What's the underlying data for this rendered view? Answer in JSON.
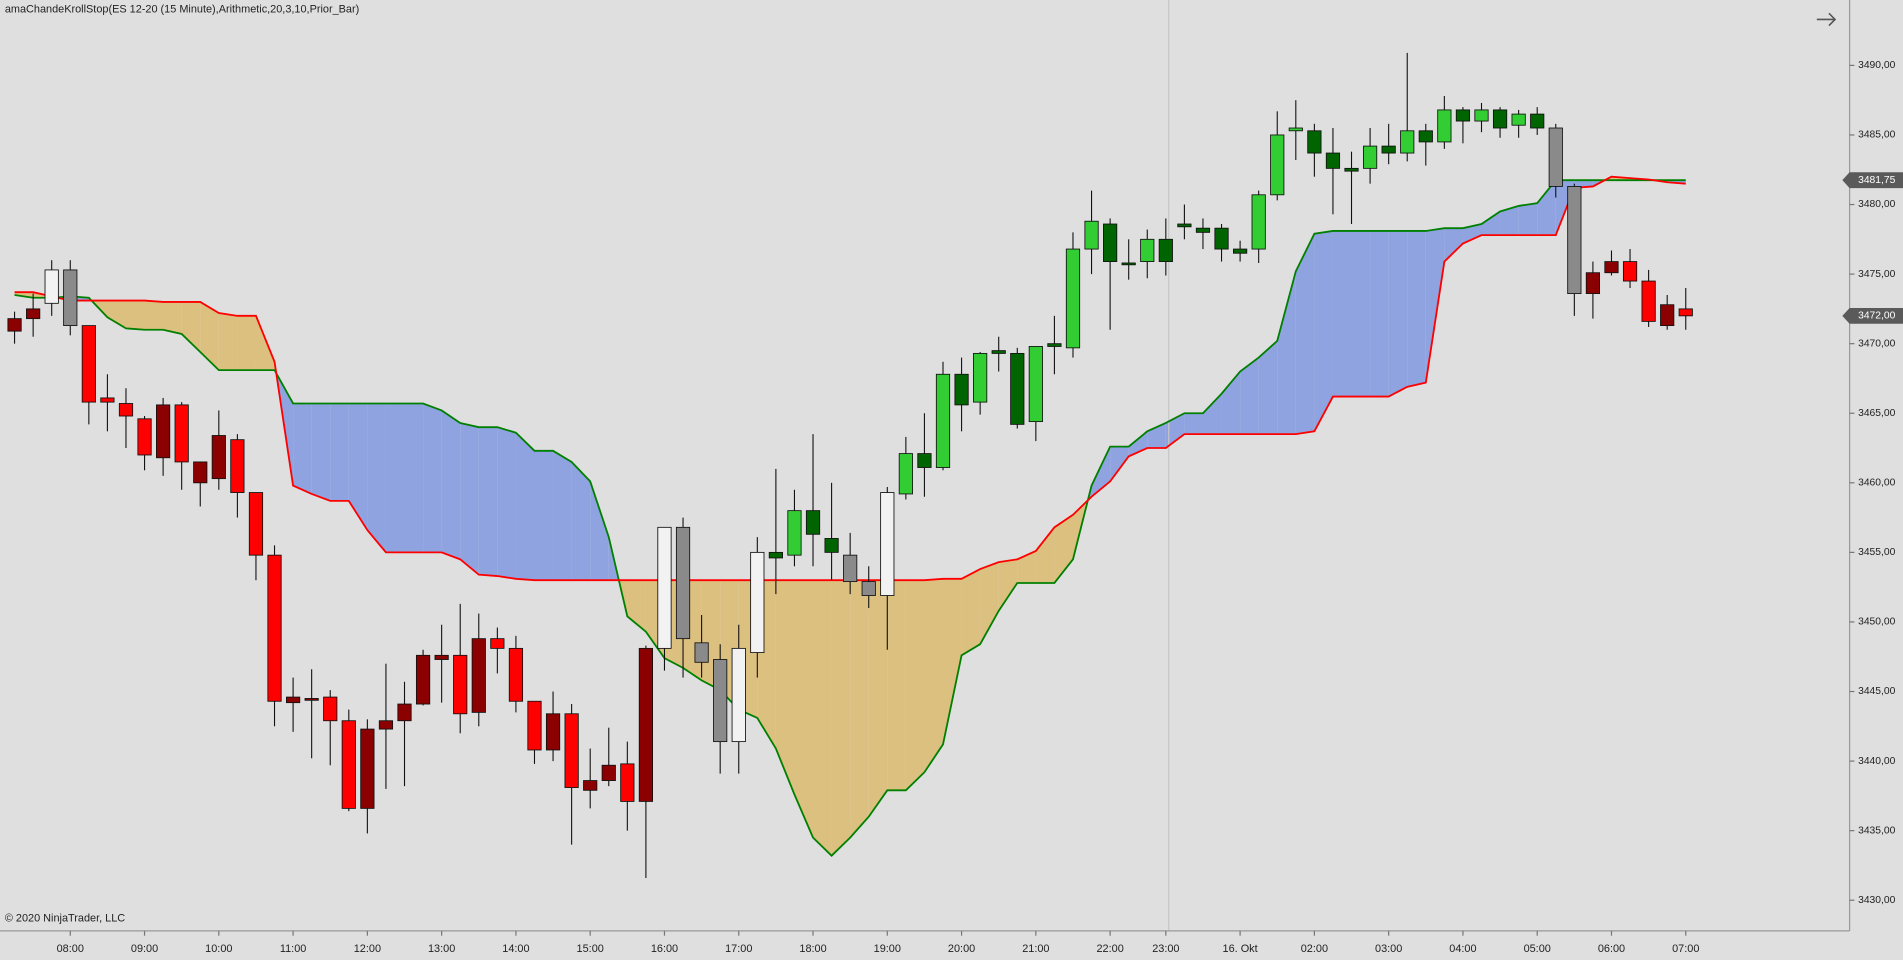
{
  "chart_data": {
    "type": "candlestick",
    "title": "amaChandeKrollStop(ES 12-20 (15 Minute),Arithmetic,20,3,10,Prior_Bar)",
    "copyright": "© 2020 NinjaTrader, LLC",
    "categories": [
      null,
      null,
      null,
      "08:00",
      null,
      null,
      null,
      "09:00",
      null,
      null,
      null,
      "10:00",
      null,
      null,
      null,
      "11:00",
      null,
      null,
      null,
      "12:00",
      null,
      null,
      null,
      "13:00",
      null,
      null,
      null,
      "14:00",
      null,
      null,
      null,
      "15:00",
      null,
      null,
      null,
      "16:00",
      null,
      null,
      null,
      "17:00",
      null,
      null,
      null,
      "18:00",
      null,
      null,
      null,
      "19:00",
      null,
      null,
      null,
      "20:00",
      null,
      null,
      null,
      "21:00",
      null,
      null,
      null,
      "22:00",
      null,
      null,
      "23:00",
      null,
      null,
      null,
      "16. Okt",
      null,
      null,
      null,
      "02:00",
      null,
      null,
      null,
      "03:00",
      null,
      null,
      null,
      "04:00",
      null,
      null,
      null,
      "05:00",
      null,
      null,
      null,
      "06:00",
      null,
      null,
      null,
      "07:00"
    ],
    "open": [
      3471.8,
      3472.5,
      3472.9,
      3475.3,
      3471.3,
      3466.1,
      3465.7,
      3464.6,
      3465.6,
      3465.6,
      3461.5,
      3460.3,
      3463.1,
      3459.3,
      3454.8,
      3444.2,
      3444.5,
      3444.6,
      3442.9,
      3436.6,
      3442.3,
      3442.9,
      3444.1,
      3447.3,
      3447.6,
      3443.5,
      3448.8,
      3448.1,
      3444.3,
      3440.8,
      3443.4,
      3437.9,
      3438.6,
      3439.8,
      3437.1,
      3448.1,
      3456.8,
      3448.5,
      3447.3,
      3441.4,
      3447.8,
      3454.6,
      3454.8,
      3458.0,
      3456.0,
      3454.8,
      3452.9,
      3451.9,
      3459.2,
      3462.1,
      3461.1,
      3467.8,
      3465.8,
      3469.5,
      3469.3,
      3464.4,
      3470.0,
      3469.7,
      3476.8,
      3478.6,
      3475.8,
      3475.9,
      3477.5,
      3478.6,
      3478.3,
      3478.3,
      3476.8,
      3476.8,
      3480.7,
      3485.3,
      3485.3,
      3483.7,
      3482.6,
      3482.6,
      3484.2,
      3483.7,
      3485.3,
      3484.5,
      3486.8,
      3486.0,
      3486.8,
      3485.7,
      3486.5,
      3485.5,
      3481.3,
      3473.6,
      3475.1,
      3475.9,
      3474.5,
      3472.8,
      3472.5
    ],
    "high": [
      3472.3,
      3473.6,
      3476.0,
      3476.0,
      3471.3,
      3467.8,
      3466.8,
      3464.8,
      3466.1,
      3465.8,
      3461.5,
      3465.2,
      3463.5,
      3459.3,
      3455.5,
      3446.0,
      3446.6,
      3445.1,
      3443.7,
      3443.0,
      3447.0,
      3445.7,
      3448.0,
      3449.8,
      3451.3,
      3450.6,
      3449.6,
      3449.0,
      3444.3,
      3445.0,
      3444.1,
      3440.9,
      3442.4,
      3441.4,
      3448.3,
      3456.8,
      3457.5,
      3450.5,
      3448.4,
      3449.8,
      3456.1,
      3461.0,
      3459.5,
      3463.5,
      3460.0,
      3456.4,
      3454.0,
      3459.7,
      3463.3,
      3465.0,
      3468.7,
      3469.0,
      3469.4,
      3470.5,
      3469.7,
      3469.8,
      3472.0,
      3478.0,
      3481.0,
      3479.0,
      3477.5,
      3478.2,
      3479.0,
      3480.0,
      3479.0,
      3478.6,
      3477.4,
      3481.0,
      3486.7,
      3487.5,
      3485.8,
      3485.5,
      3483.8,
      3485.5,
      3485.8,
      3490.9,
      3485.8,
      3487.8,
      3487.0,
      3487.3,
      3487.0,
      3486.8,
      3487.0,
      3485.8,
      3481.5,
      3475.9,
      3476.7,
      3476.8,
      3475.3,
      3473.5,
      3474.0
    ],
    "low": [
      3470.0,
      3470.5,
      3472.0,
      3470.6,
      3464.2,
      3463.7,
      3462.5,
      3460.9,
      3460.5,
      3459.5,
      3458.3,
      3459.5,
      3457.5,
      3453.0,
      3442.5,
      3442.1,
      3440.2,
      3439.7,
      3436.4,
      3434.8,
      3438.0,
      3438.2,
      3444.0,
      3444.2,
      3442.0,
      3442.5,
      3446.3,
      3443.5,
      3439.8,
      3440.0,
      3434.0,
      3436.6,
      3438.2,
      3435.0,
      3431.6,
      3446.5,
      3446.0,
      3446.0,
      3439.1,
      3439.1,
      3446.0,
      3452.0,
      3454.0,
      3454.0,
      3453.0,
      3452.0,
      3451.0,
      3448.0,
      3458.8,
      3459.0,
      3460.9,
      3463.7,
      3464.9,
      3468.0,
      3463.9,
      3463.0,
      3467.8,
      3469.0,
      3475.0,
      3471.0,
      3474.6,
      3474.7,
      3474.9,
      3477.5,
      3476.8,
      3475.9,
      3475.9,
      3475.8,
      3480.3,
      3483.2,
      3482.0,
      3479.3,
      3478.6,
      3481.5,
      3482.9,
      3483.1,
      3482.8,
      3484.0,
      3484.4,
      3485.2,
      3484.8,
      3484.8,
      3485.0,
      3480.5,
      3472.0,
      3471.8,
      3474.9,
      3474.0,
      3471.2,
      3471.0,
      3471.0
    ],
    "close": [
      3470.9,
      3471.8,
      3475.3,
      3471.3,
      3465.8,
      3465.8,
      3464.8,
      3462.0,
      3461.8,
      3461.5,
      3460.0,
      3463.4,
      3459.3,
      3454.8,
      3444.3,
      3444.6,
      3444.4,
      3442.9,
      3436.6,
      3442.3,
      3442.9,
      3444.1,
      3447.6,
      3447.6,
      3443.4,
      3448.8,
      3448.1,
      3444.3,
      3440.8,
      3443.4,
      3438.1,
      3438.6,
      3439.7,
      3437.1,
      3448.1,
      3456.8,
      3448.8,
      3447.1,
      3441.4,
      3448.1,
      3455.0,
      3455.0,
      3458.0,
      3456.3,
      3455.0,
      3452.9,
      3451.9,
      3459.3,
      3462.1,
      3461.1,
      3467.8,
      3465.6,
      3469.3,
      3469.3,
      3464.2,
      3469.8,
      3469.8,
      3476.8,
      3478.8,
      3475.9,
      3475.7,
      3477.5,
      3475.9,
      3478.4,
      3478.0,
      3476.8,
      3476.5,
      3480.7,
      3485.0,
      3485.5,
      3483.7,
      3482.6,
      3482.4,
      3484.2,
      3483.7,
      3485.3,
      3484.5,
      3486.8,
      3486.0,
      3486.8,
      3485.5,
      3486.5,
      3485.5,
      3481.3,
      3473.6,
      3475.1,
      3475.9,
      3474.5,
      3471.6,
      3471.3,
      3472.0
    ],
    "candle_colors": [
      "#8b0000",
      "#8b0000",
      "#f2f2f2",
      "#8a8a8a",
      "#ff0000",
      "#ff0000",
      "#ff0000",
      "#ff0000",
      "#8b0000",
      "#ff0000",
      "#8b0000",
      "#8b0000",
      "#ff0000",
      "#ff0000",
      "#ff0000",
      "#8b0000",
      "#8b0000",
      "#ff0000",
      "#ff0000",
      "#8b0000",
      "#8b0000",
      "#8b0000",
      "#8b0000",
      "#8b0000",
      "#ff0000",
      "#8b0000",
      "#ff0000",
      "#ff0000",
      "#ff0000",
      "#8b0000",
      "#ff0000",
      "#8b0000",
      "#8b0000",
      "#ff0000",
      "#8b0000",
      "#f2f2f2",
      "#8a8a8a",
      "#8a8a8a",
      "#8a8a8a",
      "#f2f2f2",
      "#f2f2f2",
      "#006400",
      "#32cd32",
      "#006400",
      "#006400",
      "#8a8a8a",
      "#8a8a8a",
      "#f2f2f2",
      "#32cd32",
      "#006400",
      "#32cd32",
      "#006400",
      "#32cd32",
      "#006400",
      "#006400",
      "#32cd32",
      "#006400",
      "#32cd32",
      "#32cd32",
      "#006400",
      "#006400",
      "#32cd32",
      "#006400",
      "#006400",
      "#006400",
      "#006400",
      "#006400",
      "#32cd32",
      "#32cd32",
      "#32cd32",
      "#006400",
      "#006400",
      "#006400",
      "#32cd32",
      "#006400",
      "#32cd32",
      "#006400",
      "#32cd32",
      "#006400",
      "#32cd32",
      "#006400",
      "#32cd32",
      "#006400",
      "#8a8a8a",
      "#8a8a8a",
      "#8b0000",
      "#8b0000",
      "#ff0000",
      "#ff0000",
      "#8b0000",
      "#ff0000"
    ],
    "series": [
      {
        "color": "#008000",
        "values": [
          3473.5,
          3473.3,
          3473.3,
          3473.4,
          3473.3,
          3471.9,
          3471.1,
          3471.0,
          3471.0,
          3470.7,
          3469.4,
          3468.1,
          3468.1,
          3468.1,
          3468.1,
          3465.7,
          3465.7,
          3465.7,
          3465.7,
          3465.7,
          3465.7,
          3465.7,
          3465.7,
          3465.2,
          3464.3,
          3464.0,
          3464.0,
          3463.6,
          3462.3,
          3462.3,
          3461.5,
          3460.1,
          3456.1,
          3450.4,
          3449.3,
          3447.4,
          3446.7,
          3445.8,
          3445.1,
          3443.7,
          3443.1,
          3440.9,
          3437.6,
          3434.5,
          3433.2,
          3434.5,
          3436.0,
          3437.9,
          3437.9,
          3439.2,
          3441.2,
          3447.6,
          3448.4,
          3450.8,
          3452.8,
          3452.8,
          3452.8,
          3454.5,
          3459.8,
          3462.6,
          3462.6,
          3463.7,
          3464.3,
          3465.0,
          3465.0,
          3466.4,
          3468.0,
          3469.0,
          3470.2,
          3475.2,
          3477.9,
          3478.1,
          3478.1,
          3478.1,
          3478.1,
          3478.1,
          3478.1,
          3478.3,
          3478.3,
          3478.6,
          3479.5,
          3479.9,
          3480.1,
          3481.75,
          3481.75,
          3481.75,
          3481.75,
          3481.75,
          3481.75,
          3481.75,
          3481.75
        ]
      },
      {
        "color": "#ff0000",
        "values": [
          3473.7,
          3473.7,
          3473.4,
          3473.1,
          3473.1,
          3473.1,
          3473.1,
          3473.1,
          3473.0,
          3473.0,
          3473.0,
          3472.2,
          3472.0,
          3472.0,
          3468.7,
          3459.8,
          3459.2,
          3458.7,
          3458.7,
          3456.6,
          3455.0,
          3455.0,
          3455.0,
          3455.0,
          3454.5,
          3453.4,
          3453.3,
          3453.1,
          3453.0,
          3453.0,
          3453.0,
          3453.0,
          3453.0,
          3453.0,
          3453.0,
          3453.0,
          3453.0,
          3453.0,
          3453.0,
          3453.0,
          3453.0,
          3453.0,
          3453.0,
          3453.0,
          3453.0,
          3453.0,
          3453.0,
          3453.0,
          3453.0,
          3453.0,
          3453.1,
          3453.1,
          3453.8,
          3454.3,
          3454.5,
          3455.1,
          3456.8,
          3457.7,
          3459.0,
          3460.1,
          3461.9,
          3462.5,
          3462.5,
          3463.5,
          3463.5,
          3463.5,
          3463.5,
          3463.5,
          3463.5,
          3463.5,
          3463.7,
          3466.2,
          3466.2,
          3466.2,
          3466.2,
          3466.9,
          3467.2,
          3475.9,
          3477.2,
          3477.8,
          3477.8,
          3477.8,
          3477.8,
          3477.8,
          3481.2,
          3481.3,
          3482.0,
          3481.9,
          3481.8,
          3481.6,
          3481.5
        ]
      }
    ],
    "fill_colors": {
      "above": "#8fa3e0",
      "below": "#dcc07f"
    },
    "ylim": [
      3427.8,
      3494.7
    ],
    "yticks": [
      {
        "value": 3430,
        "label": "3430,00"
      },
      {
        "value": 3435,
        "label": "3435,00"
      },
      {
        "value": 3440,
        "label": "3440,00"
      },
      {
        "value": 3445,
        "label": "3445,00"
      },
      {
        "value": 3450,
        "label": "3450,00"
      },
      {
        "value": 3455,
        "label": "3455,00"
      },
      {
        "value": 3460,
        "label": "3460,00"
      },
      {
        "value": 3465,
        "label": "3465,00"
      },
      {
        "value": 3470,
        "label": "3470,00"
      },
      {
        "value": 3475,
        "label": "3475,00"
      },
      {
        "value": 3480,
        "label": "3480,00"
      },
      {
        "value": 3485,
        "label": "3485,00"
      },
      {
        "value": 3490,
        "label": "3490,00"
      }
    ],
    "price_markers": [
      {
        "value": 3481.75,
        "label": "3481,75"
      },
      {
        "value": 3472,
        "label": "3472,00"
      }
    ]
  }
}
